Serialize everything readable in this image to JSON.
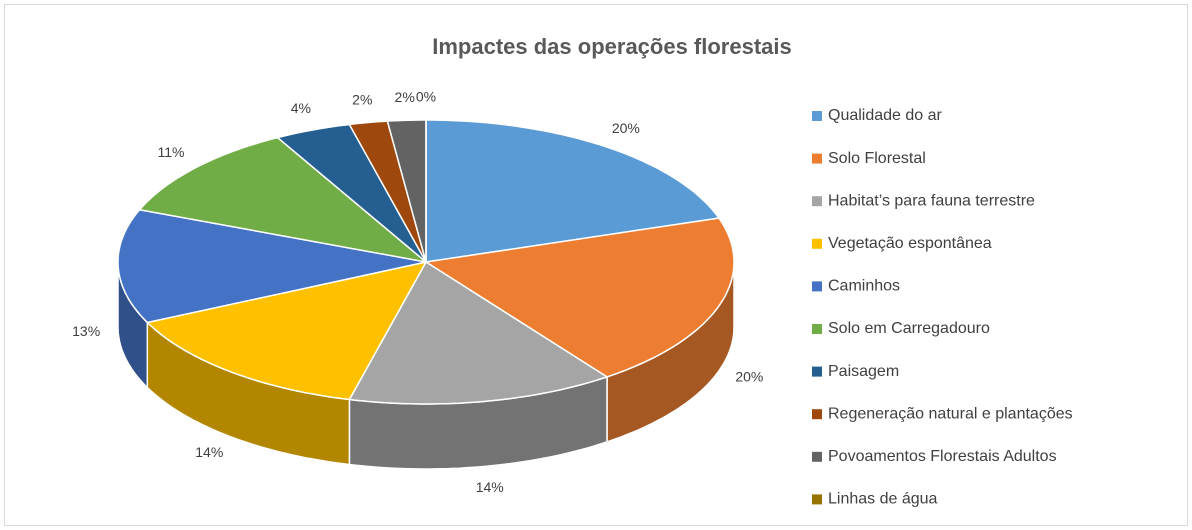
{
  "chart_data": {
    "type": "pie",
    "title": "Impactes das operações florestais",
    "categories": [
      "Qualidade do ar",
      "Solo Florestal",
      "Habitat’s para fauna terrestre",
      "Vegetação espontânea",
      "Caminhos",
      "Solo em Carregadouro",
      "Paisagem",
      "Regeneração natural e plantações",
      "Povoamentos Florestais Adultos",
      "Linhas de água"
    ],
    "values": [
      20,
      20,
      14,
      14,
      13,
      11,
      4,
      2,
      2,
      0
    ],
    "value_labels": [
      "20%",
      "20%",
      "14%",
      "14%",
      "13%",
      "11%",
      "4%",
      "2%",
      "2%",
      "0%"
    ],
    "colors": [
      "#5b9bd5",
      "#ed7d31",
      "#a5a5a5",
      "#ffc000",
      "#4472c4",
      "#70ad47",
      "#255e91",
      "#9e480e",
      "#636363",
      "#997300"
    ],
    "legend": "right"
  }
}
